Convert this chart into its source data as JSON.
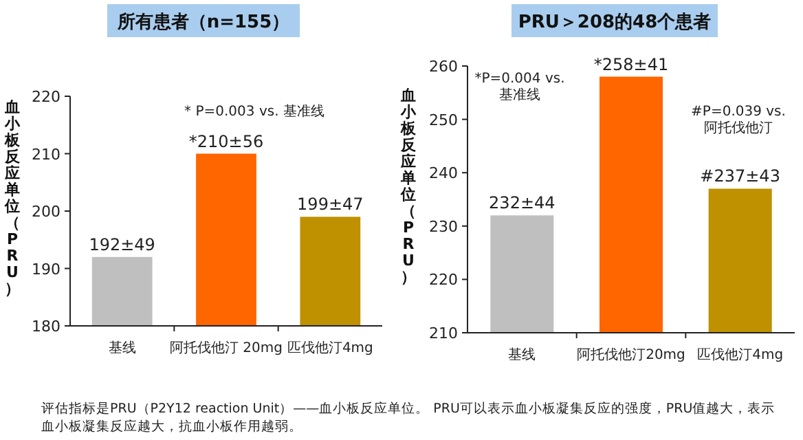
{
  "chart_data": [
    {
      "type": "bar",
      "title": "所有患者（n=155）",
      "ylabel": "血小板反应单位（PRU）",
      "categories": [
        "基线",
        "阿托伐他汀 20mg",
        "匹伐他汀4mg"
      ],
      "values": [
        192,
        210,
        199
      ],
      "colors": [
        "#bfbfbf",
        "#ff6600",
        "#bf9000"
      ],
      "value_labels": [
        "192±49",
        "*210±56",
        "199±47"
      ],
      "ylim": [
        180,
        220
      ],
      "yticks": [
        180,
        190,
        200,
        210,
        220
      ],
      "annotations": [
        "* P=0.003 vs. 基准线",
        "评估指标是PRU（P2Y12 reaction Unit）——血小板反应单位。 PRU可以表示血小板凝集反应的强度，PRU值越大，表示血小板凝集反应越大，抗血小板作用越弱。"
      ]
    },
    {
      "type": "bar",
      "title": "PRU＞208的48个患者",
      "ylabel": "血小板反应单位（PRU）",
      "categories": [
        "基线",
        "阿托伐他汀20mg",
        "匹伐他汀4mg"
      ],
      "values": [
        232,
        258,
        237
      ],
      "colors": [
        "#bfbfbf",
        "#ff6600",
        "#bf9000"
      ],
      "value_labels": [
        "232±44",
        "*258±41",
        "#237±43"
      ],
      "ylim": [
        210,
        260
      ],
      "yticks": [
        210,
        220,
        230,
        240,
        250,
        260
      ],
      "annotations": [
        "*P=0.004 vs. 基准线",
        "#P=0.039 vs. 阿托伐他汀"
      ]
    }
  ]
}
